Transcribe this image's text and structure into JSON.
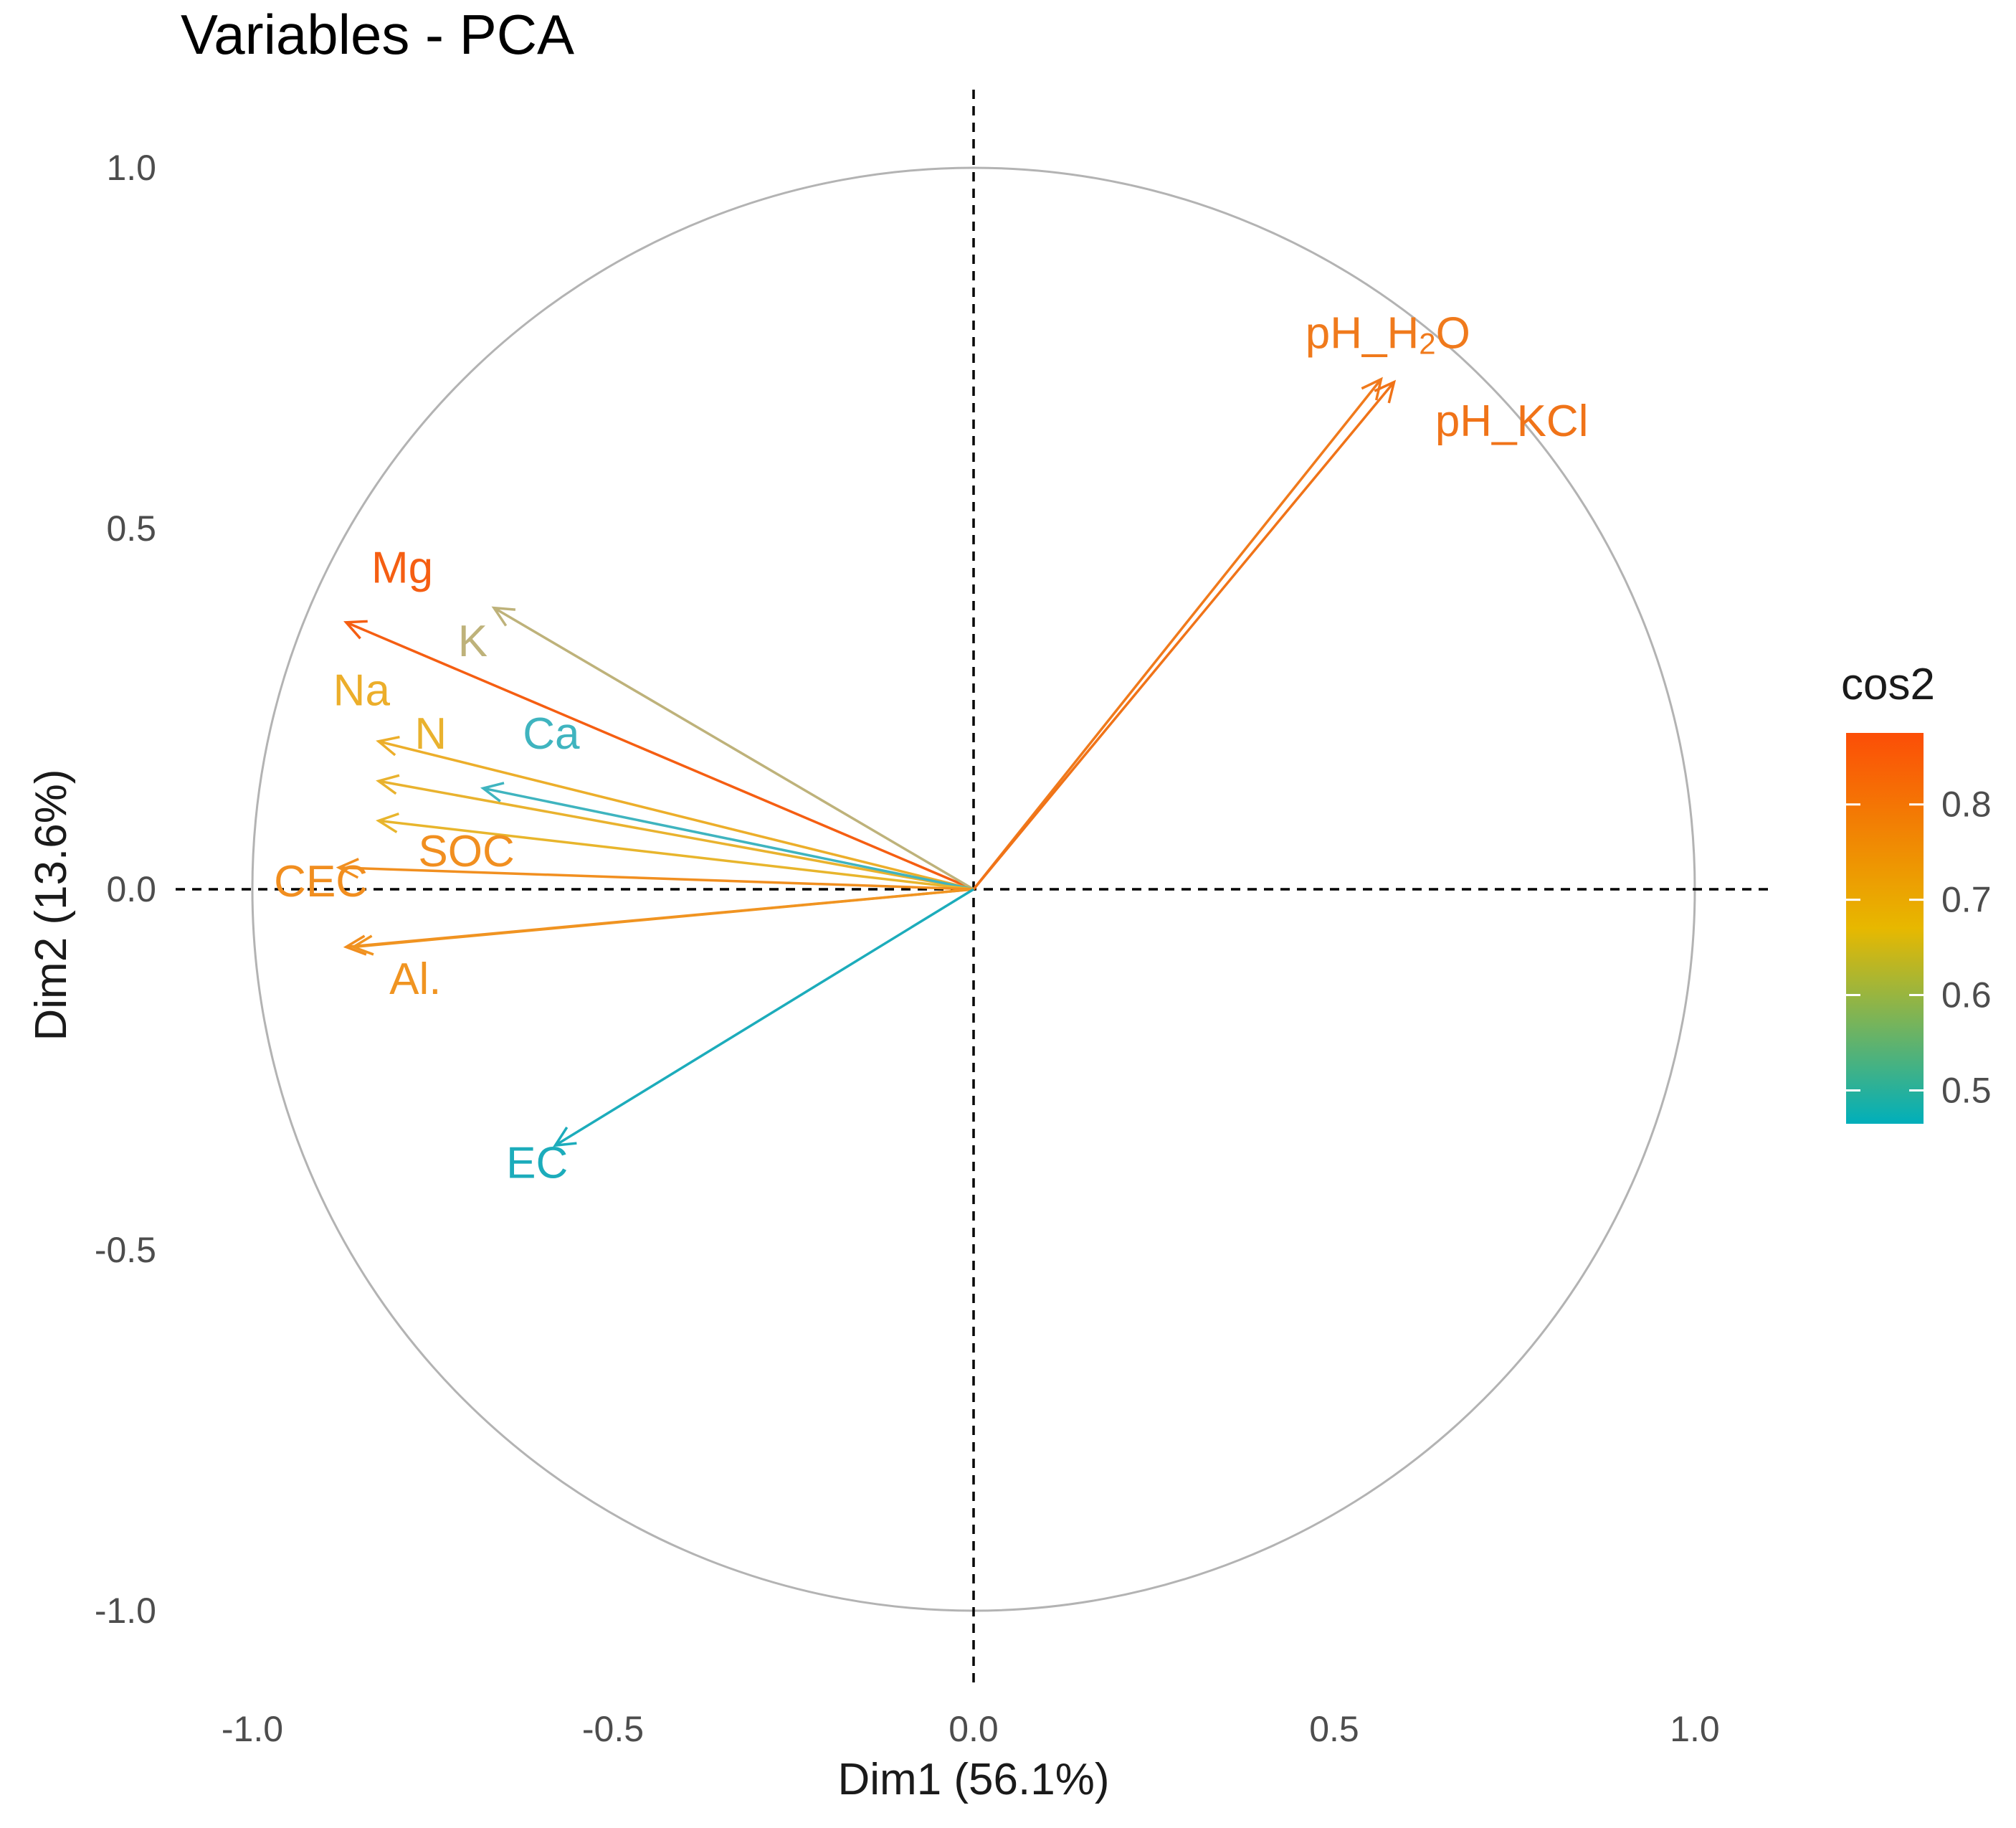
{
  "chart_data": {
    "type": "scatter",
    "subtype": "pca-variable-correlation-circle",
    "title": "Variables - PCA",
    "xlabel": "Dim1 (56.1%)",
    "ylabel": "Dim2 (13.6%)",
    "xlim": [
      -1.0,
      1.0
    ],
    "ylim": [
      -1.0,
      1.0
    ],
    "x_ticks": [
      -1.0,
      -0.5,
      0.0,
      0.5,
      1.0
    ],
    "x_tick_labels": [
      "-1.0",
      "-0.5",
      "0.0",
      "0.5",
      "1.0"
    ],
    "y_ticks": [
      1.0,
      0.5,
      0.0,
      -0.5,
      -1.0
    ],
    "y_tick_labels": [
      "1.0",
      "0.5",
      "0.0",
      "-0.5",
      "-1.0"
    ],
    "grid": false,
    "unit_circle": true,
    "reference_lines": [
      "x = 0 dashed",
      "y = 0 dashed"
    ],
    "legend": {
      "title": "cos2",
      "position": "right",
      "type": "gradient",
      "range": [
        0.465,
        0.875
      ],
      "ticks": [
        0.8,
        0.7,
        0.6,
        0.5
      ],
      "tick_labels": [
        "0.8",
        "0.7",
        "0.6",
        "0.5"
      ],
      "gradient_stops": [
        {
          "value": 0.465,
          "color": "#00AFBB"
        },
        {
          "value": 0.67,
          "color": "#E7B800"
        },
        {
          "value": 0.875,
          "color": "#FC4E07"
        }
      ]
    },
    "variables": [
      {
        "name": "pH_H2O",
        "label": "pH_H",
        "label_sub": "2",
        "label_tail": "O",
        "x": 0.565,
        "y": 0.707,
        "cos2": 0.82,
        "color": "#F07A1C",
        "label_x": 0.46,
        "label_y": 0.75
      },
      {
        "name": "pH_KCl",
        "label": "pH_KCl",
        "x": 0.583,
        "y": 0.703,
        "cos2": 0.83,
        "color": "#F07318",
        "label_x": 0.64,
        "label_y": 0.628
      },
      {
        "name": "Mg",
        "label": "Mg",
        "x": -0.87,
        "y": 0.37,
        "cos2": 0.86,
        "color": "#F55E12",
        "label_x": -0.835,
        "label_y": 0.425
      },
      {
        "name": "K",
        "label": "K",
        "x": -0.665,
        "y": 0.39,
        "cos2": 0.59,
        "color": "#BEB27A",
        "label_x": -0.715,
        "label_y": 0.323
      },
      {
        "name": "Na",
        "label": "Na",
        "x": -0.825,
        "y": 0.205,
        "cos2": 0.71,
        "color": "#ECAE2A",
        "label_x": -0.888,
        "label_y": 0.255
      },
      {
        "name": "N",
        "label": "N",
        "x": -0.825,
        "y": 0.15,
        "cos2": 0.7,
        "color": "#E9B22E",
        "label_x": -0.775,
        "label_y": 0.195
      },
      {
        "name": "Ca",
        "label": "Ca",
        "x": -0.68,
        "y": 0.14,
        "cos2": 0.5,
        "color": "#3FB4BF",
        "label_x": -0.625,
        "label_y": 0.195
      },
      {
        "name": "unlabeled",
        "label": "",
        "x": -0.825,
        "y": 0.095,
        "cos2": 0.69,
        "color": "#E8B52C"
      },
      {
        "name": "SOC",
        "label": "SOC",
        "x": -0.88,
        "y": 0.03,
        "cos2": 0.77,
        "color": "#F18F20",
        "label_x": -0.77,
        "label_y": 0.032
      },
      {
        "name": "CEC",
        "label": "CEC",
        "x": -0.87,
        "y": -0.08,
        "cos2": 0.76,
        "color": "#F18E1F",
        "label_x": -0.97,
        "label_y": -0.01
      },
      {
        "name": "Al.",
        "label": "Al.",
        "x": -0.86,
        "y": -0.08,
        "cos2": 0.75,
        "color": "#F09421",
        "label_x": -0.81,
        "label_y": -0.145
      },
      {
        "name": "EC",
        "label": "EC",
        "x": -0.58,
        "y": -0.355,
        "cos2": 0.47,
        "color": "#1CACBB",
        "label_x": -0.648,
        "label_y": -0.4
      }
    ]
  }
}
